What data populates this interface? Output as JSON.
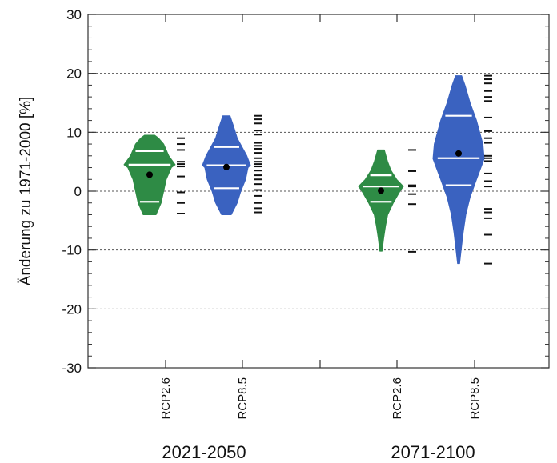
{
  "chart_data": {
    "type": "violin",
    "ylabel": "Änderung zu 1971-2000 [%]",
    "ylim": [
      -30,
      30
    ],
    "yticks": [
      -30,
      -20,
      -10,
      0,
      10,
      20,
      30
    ],
    "ytick_labels": [
      "-30",
      "-20",
      "-10",
      "0",
      "10",
      "20",
      "30"
    ],
    "grid": "horizontal dotted at major ticks",
    "periods": [
      "2021-2050",
      "2071-2100"
    ],
    "colors": {
      "RCP2.6": "#2e8b45",
      "RCP8.5": "#3a62c0"
    },
    "groups": [
      {
        "period": "2021-2050",
        "scenario": "RCP2.6",
        "color": "#2e8b45",
        "profile": [
          [
            -4,
            0.25
          ],
          [
            -3,
            0.35
          ],
          [
            -2,
            0.45
          ],
          [
            0,
            0.55
          ],
          [
            2,
            0.65
          ],
          [
            4,
            0.85
          ],
          [
            4.5,
            1.0
          ],
          [
            6,
            0.75
          ],
          [
            8,
            0.55
          ],
          [
            9,
            0.35
          ],
          [
            9.5,
            0.2
          ]
        ],
        "mean": 2.8,
        "percentile_lines": [
          -1.8,
          4.5,
          6.8
        ],
        "members": [
          9,
          8,
          7,
          5,
          4.6,
          4.2,
          2.5,
          -0.2,
          -2,
          -3.8
        ]
      },
      {
        "period": "2021-2050",
        "scenario": "RCP8.5",
        "color": "#3a62c0",
        "profile": [
          [
            -4,
            0.2
          ],
          [
            -2,
            0.45
          ],
          [
            0,
            0.6
          ],
          [
            2,
            0.8
          ],
          [
            4,
            0.9
          ],
          [
            4.4,
            1.0
          ],
          [
            6,
            0.85
          ],
          [
            7.5,
            0.65
          ],
          [
            9,
            0.45
          ],
          [
            11,
            0.3
          ],
          [
            12.8,
            0.15
          ]
        ],
        "mean": 4.1,
        "percentile_lines": [
          0.5,
          4.4,
          7.5
        ],
        "members": [
          12.8,
          12.2,
          11.5,
          10.3,
          9.6,
          8.2,
          7.7,
          7.2,
          6.5,
          5.6,
          5.0,
          4.6,
          4.2,
          3.5,
          2.7,
          2.0,
          1.2,
          0.2,
          -0.8,
          -2.0,
          -2.9,
          -3.6
        ]
      },
      {
        "period": "2071-2100",
        "scenario": "RCP2.6",
        "color": "#2e8b45",
        "profile": [
          [
            -10.2,
            0.05
          ],
          [
            -8,
            0.12
          ],
          [
            -6,
            0.2
          ],
          [
            -4,
            0.3
          ],
          [
            -2,
            0.55
          ],
          [
            0,
            0.85
          ],
          [
            0.8,
            1.0
          ],
          [
            2,
            0.7
          ],
          [
            3.5,
            0.45
          ],
          [
            5,
            0.3
          ],
          [
            7,
            0.15
          ]
        ],
        "mean": 0.1,
        "percentile_lines": [
          -1.8,
          0.8,
          2.7
        ],
        "members": [
          7,
          3.4,
          1.0,
          0.8,
          -0.5,
          -2.2,
          -10.3
        ]
      },
      {
        "period": "2071-2100",
        "scenario": "RCP8.5",
        "color": "#3a62c0",
        "profile": [
          [
            -12.3,
            0.04
          ],
          [
            -10,
            0.1
          ],
          [
            -7,
            0.18
          ],
          [
            -4,
            0.28
          ],
          [
            -1,
            0.45
          ],
          [
            2,
            0.7
          ],
          [
            5.5,
            1.0
          ],
          [
            8,
            0.95
          ],
          [
            12,
            0.7
          ],
          [
            15,
            0.45
          ],
          [
            18,
            0.25
          ],
          [
            19.6,
            0.12
          ]
        ],
        "mean": 6.4,
        "percentile_lines": [
          1.0,
          5.6,
          12.8
        ],
        "members": [
          19.6,
          19.0,
          18.3,
          17.0,
          16.0,
          15.3,
          12.5,
          10.2,
          9.0,
          8.2,
          6.0,
          5.6,
          5.1,
          3.0,
          1.7,
          0.8,
          -3.0,
          -3.6,
          -4.6,
          -7.4,
          -12.3
        ]
      }
    ]
  }
}
